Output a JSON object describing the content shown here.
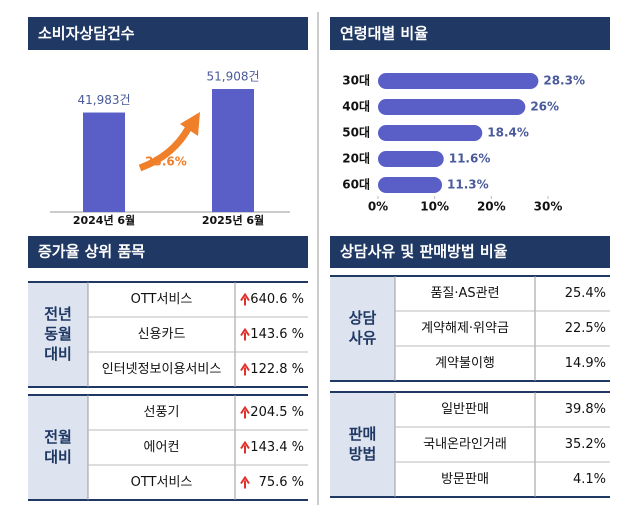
{
  "chart_data": [
    {
      "type": "bar",
      "title": "소비자상담건수",
      "categories": [
        "2024년 6월",
        "2025년 6월"
      ],
      "values": [
        41983,
        51908
      ],
      "value_labels": [
        "41,983건",
        "51,908건"
      ],
      "color": "#5a5fc8",
      "annotation": "23.6%"
    },
    {
      "type": "hbar",
      "title": "연령대별 비율",
      "categories": [
        "30대",
        "40대",
        "50대",
        "20대",
        "60대"
      ],
      "values": [
        28.3,
        26,
        18.4,
        11.6,
        11.3
      ],
      "value_labels": [
        "28.3%",
        "26%",
        "18.4%",
        "11.6%",
        "11.3%"
      ],
      "color": "#5a5fc8",
      "xlim": [
        0,
        30
      ],
      "xticks": [
        {
          "value": 0,
          "label": "0%"
        },
        {
          "value": 10,
          "label": "10%"
        },
        {
          "value": 20,
          "label": "20%"
        },
        {
          "value": 30,
          "label": "30%"
        }
      ]
    }
  ],
  "tables": [
    {
      "title": "증가율 상위 품목",
      "groups": [
        {
          "label": [
            "전년",
            "동월",
            "대비"
          ],
          "rows": [
            [
              "OTT서비스",
              "640.6 %"
            ],
            [
              "신용카드",
              "143.6 %"
            ],
            [
              "인터넷정보이용서비스",
              "122.8 %"
            ]
          ]
        },
        {
          "label": [
            "전월",
            "대비"
          ],
          "rows": [
            [
              "선풍기",
              "204.5 %"
            ],
            [
              "에어컨",
              "143.4 %"
            ],
            [
              "OTT서비스",
              "75.6 %"
            ]
          ]
        }
      ]
    },
    {
      "title": "상담사유 및 판매방법 비율",
      "groups": [
        {
          "label": [
            "상담",
            "사유"
          ],
          "rows": [
            [
              "품질·AS관련",
              "25.4%"
            ],
            [
              "계약해제·위약금",
              "22.5%"
            ],
            [
              "계약불이행",
              "14.9%"
            ]
          ]
        },
        {
          "label": [
            "판매",
            "방법"
          ],
          "rows": [
            [
              "일반판매",
              "39.8%"
            ],
            [
              "국내온라인거래",
              "35.2%"
            ],
            [
              "방문판매",
              "4.1%"
            ]
          ]
        }
      ]
    }
  ]
}
